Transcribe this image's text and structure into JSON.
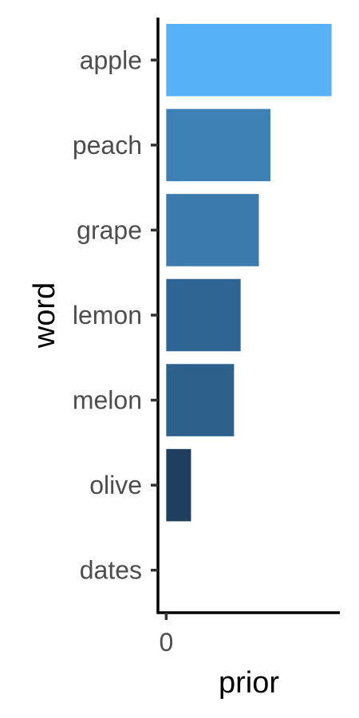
{
  "chart_data": {
    "type": "bar",
    "orientation": "horizontal",
    "categories": [
      "apple",
      "peach",
      "grape",
      "lemon",
      "melon",
      "olive",
      "dates"
    ],
    "values": [
      1.0,
      0.63,
      0.56,
      0.45,
      0.41,
      0.15,
      0.0
    ],
    "xlabel": "prior",
    "ylabel": "word",
    "x_ticks": [
      0
    ],
    "x_tick_labels": [
      "0"
    ],
    "xlim": [
      -0.05,
      1.05
    ],
    "grid": false,
    "legend": "none",
    "bar_colors": [
      "#56B1F7",
      "#3D80B4",
      "#3A7AAC",
      "#2F6592",
      "#2D618C",
      "#1F3F5E",
      "#132B43"
    ]
  }
}
